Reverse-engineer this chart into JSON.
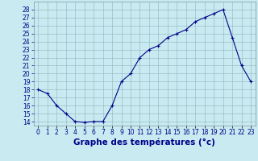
{
  "hours": [
    0,
    1,
    2,
    3,
    4,
    5,
    6,
    7,
    8,
    9,
    10,
    11,
    12,
    13,
    14,
    15,
    16,
    17,
    18,
    19,
    20,
    21,
    22,
    23
  ],
  "temperatures": [
    18,
    17.5,
    16,
    15,
    14,
    13.9,
    14,
    14,
    16,
    19,
    20,
    22,
    23,
    23.5,
    24.5,
    25,
    25.5,
    26.5,
    27,
    27.5,
    28,
    24.5,
    21,
    19
  ],
  "line_color": "#00008b",
  "marker_color": "#00008b",
  "bg_color": "#c8eaf0",
  "grid_color": "#9bbfc8",
  "xlabel": "Graphe des températures (°c)",
  "xlabel_color": "#00008b",
  "ylim": [
    13.5,
    29
  ],
  "yticks": [
    14,
    15,
    16,
    17,
    18,
    19,
    20,
    21,
    22,
    23,
    24,
    25,
    26,
    27,
    28
  ],
  "xtick_labels": [
    "0",
    "1",
    "2",
    "3",
    "4",
    "5",
    "6",
    "7",
    "8",
    "9",
    "10",
    "11",
    "12",
    "13",
    "14",
    "15",
    "16",
    "17",
    "18",
    "19",
    "20",
    "21",
    "22",
    "23"
  ],
  "tick_color": "#00008b",
  "tick_fontsize": 5.5,
  "xlabel_fontsize": 7.5
}
